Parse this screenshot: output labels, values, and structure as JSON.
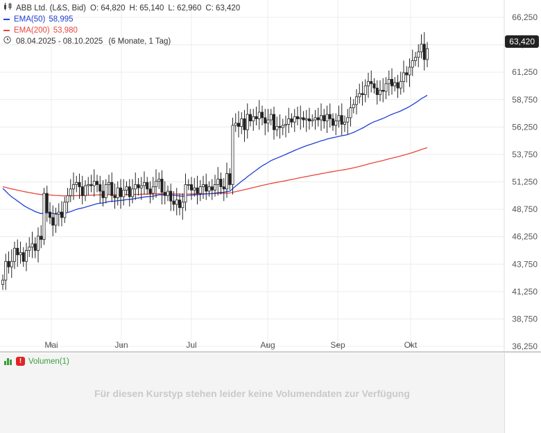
{
  "legend": {
    "instrument": "ABB Ltd. (L&S, Bid)",
    "open": "O: 64,820",
    "high": "H: 65,140",
    "low": "L: 62,960",
    "close": "C: 63,420",
    "ema50_label": "EMA(50)",
    "ema50_value": "58,995",
    "ema200_label": "EMA(200)",
    "ema200_value": "53,980",
    "date_range": "08.04.2025 - 08.10.2025",
    "period": "(6 Monate, 1 Tag)"
  },
  "price_tag": "63,420",
  "volume": {
    "label": "Volumen(1)",
    "message": "Für diesen Kurstyp stehen leider keine Volumendaten zur Verfügung"
  },
  "colors": {
    "ema50": "#1f3fd6",
    "ema200": "#e8453c",
    "candle": "#222222",
    "grid": "#ececec"
  },
  "chart_data": {
    "type": "candlestick",
    "x_ticks": [
      "Mai",
      "Jun",
      "Jul",
      "Aug",
      "Sep",
      "Okt"
    ],
    "y_ticks": [
      "66,250",
      "63,750",
      "61,250",
      "58,750",
      "56,250",
      "53,750",
      "51,250",
      "48,750",
      "46,250",
      "43,750",
      "41,250",
      "38,750",
      "36,250"
    ],
    "ylim": [
      36.25,
      66.25
    ],
    "close_series": [
      42.3,
      44.0,
      43.5,
      44.0,
      45.2,
      44.6,
      44.8,
      44.0,
      45.0,
      45.3,
      45.6,
      45.0,
      46.3,
      46.0,
      50.2,
      48.5,
      48.0,
      47.3,
      48.3,
      48.5,
      48.0,
      49.4,
      50.0,
      50.6,
      51.0,
      51.2,
      50.8,
      50.0,
      50.9,
      51.0,
      50.9,
      51.3,
      51.0,
      50.4,
      49.8,
      51.0,
      51.2,
      50.0,
      49.8,
      50.7,
      49.9,
      50.5,
      50.8,
      49.9,
      50.6,
      51.0,
      50.7,
      50.9,
      51.2,
      50.6,
      50.2,
      50.8,
      51.3,
      51.5,
      50.3,
      50.0,
      50.4,
      49.5,
      49.2,
      49.6,
      48.9,
      49.4,
      51.0,
      51.0,
      50.5,
      50.7,
      50.2,
      50.8,
      51.0,
      50.4,
      50.8,
      50.5,
      51.0,
      51.5,
      50.8,
      50.6,
      52.0,
      51.0,
      56.4,
      56.6,
      56.3,
      57.0,
      56.0,
      57.4,
      56.8,
      57.2,
      57.0,
      57.6,
      57.1,
      56.6,
      56.9,
      57.4,
      56.0,
      56.3,
      56.2,
      56.4,
      56.5,
      57.0,
      56.7,
      57.2,
      57.0,
      57.1,
      56.9,
      57.0,
      56.8,
      56.9,
      57.1,
      56.9,
      57.3,
      56.8,
      57.4,
      57.0,
      56.4,
      56.8,
      57.3,
      56.5,
      56.7,
      57.1,
      58.0,
      58.3,
      59.0,
      59.3,
      59.2,
      60.0,
      60.4,
      60.2,
      59.8,
      59.2,
      59.6,
      59.5,
      60.2,
      60.6,
      60.0,
      60.3,
      59.8,
      60.4,
      61.2,
      61.0,
      61.7,
      62.3,
      62.6,
      63.1,
      63.8,
      62.4,
      63.4
    ],
    "ema50": {
      "name": "EMA(50)",
      "last": 58.995
    },
    "ema200": {
      "name": "EMA(200)",
      "last": 53.98
    }
  }
}
